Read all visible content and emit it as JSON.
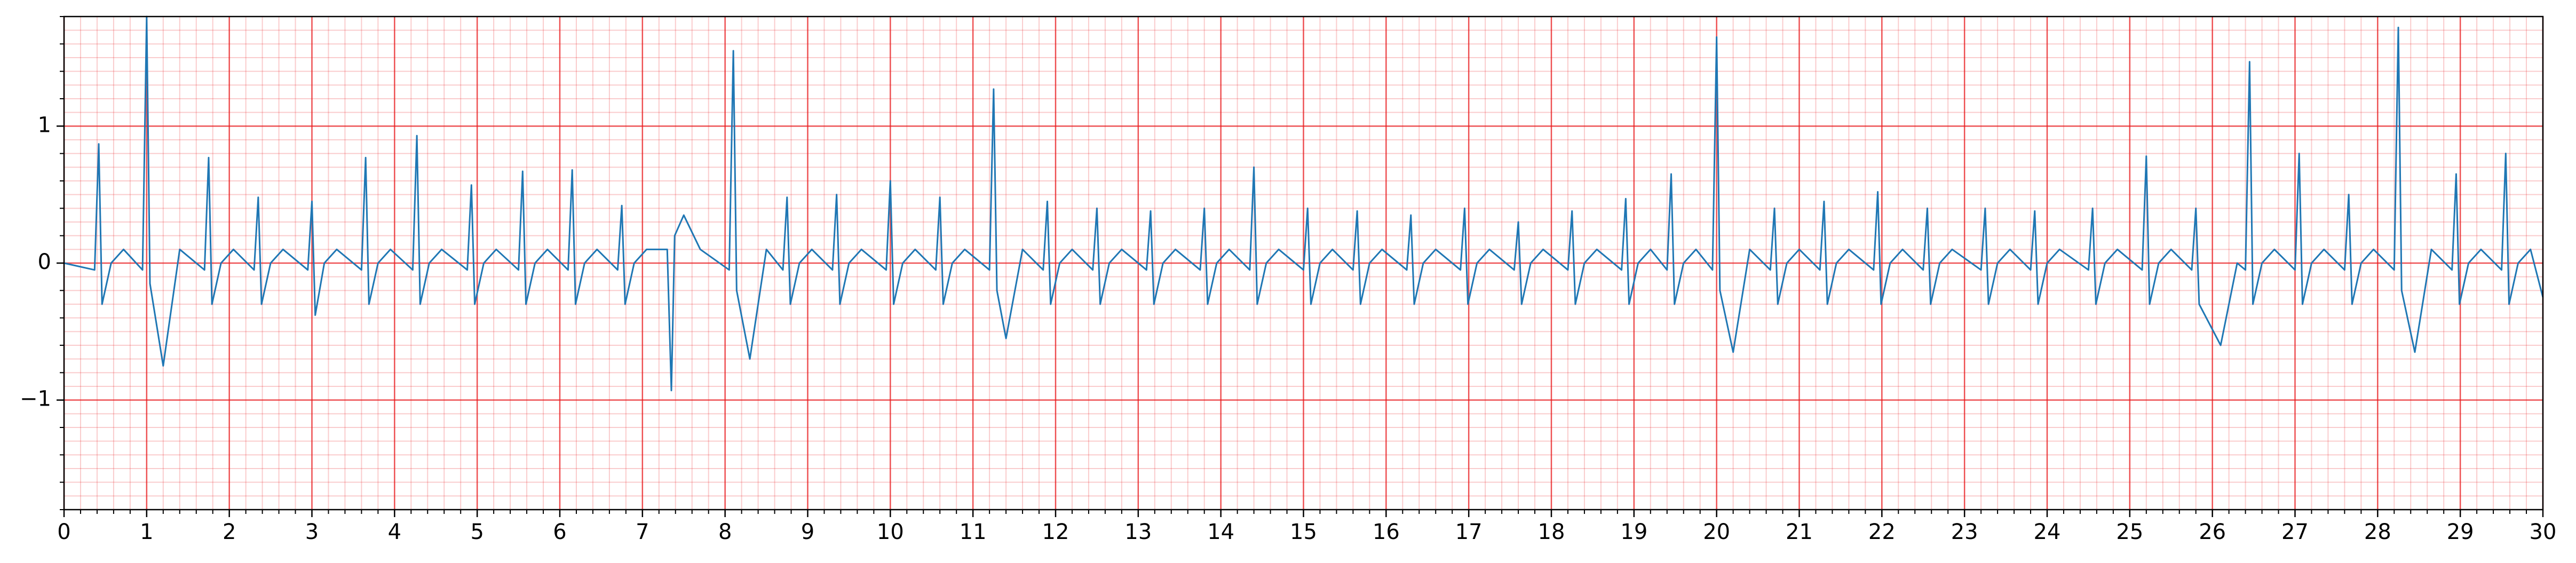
{
  "chart_data": {
    "type": "line",
    "x": [
      0,
      0.37,
      0.42,
      0.46,
      0.57,
      0.72,
      0.95,
      1.0,
      1.04,
      1.2,
      1.4,
      1.7,
      1.75,
      1.79,
      1.9,
      2.05,
      2.3,
      2.35,
      2.39,
      2.5,
      2.65,
      2.95,
      3.0,
      3.04,
      3.15,
      3.3,
      3.6,
      3.65,
      3.69,
      3.8,
      3.95,
      4.22,
      4.27,
      4.31,
      4.42,
      4.57,
      4.88,
      4.93,
      4.97,
      5.08,
      5.23,
      5.5,
      5.55,
      5.59,
      5.7,
      5.85,
      6.1,
      6.15,
      6.19,
      6.3,
      6.45,
      6.7,
      6.75,
      6.79,
      6.9,
      7.05,
      7.3,
      7.35,
      7.39,
      7.5,
      7.7,
      8.05,
      8.1,
      8.14,
      8.3,
      8.5,
      8.7,
      8.75,
      8.79,
      8.9,
      9.05,
      9.3,
      9.35,
      9.39,
      9.5,
      9.65,
      9.95,
      10.0,
      10.04,
      10.15,
      10.3,
      10.55,
      10.6,
      10.64,
      10.75,
      10.9,
      11.2,
      11.25,
      11.29,
      11.4,
      11.6,
      11.85,
      11.9,
      11.94,
      12.05,
      12.2,
      12.45,
      12.5,
      12.54,
      12.65,
      12.8,
      13.1,
      13.15,
      13.19,
      13.3,
      13.45,
      13.75,
      13.8,
      13.84,
      13.95,
      14.1,
      14.35,
      14.4,
      14.44,
      14.55,
      14.7,
      15.0,
      15.05,
      15.09,
      15.2,
      15.35,
      15.6,
      15.65,
      15.69,
      15.8,
      15.95,
      16.25,
      16.3,
      16.34,
      16.45,
      16.6,
      16.9,
      16.95,
      16.99,
      17.1,
      17.25,
      17.55,
      17.6,
      17.64,
      17.75,
      17.9,
      18.2,
      18.25,
      18.29,
      18.4,
      18.55,
      18.85,
      18.9,
      18.94,
      19.05,
      19.2,
      19.4,
      19.45,
      19.49,
      19.6,
      19.75,
      19.95,
      20.0,
      20.04,
      20.2,
      20.4,
      20.65,
      20.7,
      20.74,
      20.85,
      21.0,
      21.25,
      21.3,
      21.34,
      21.45,
      21.6,
      21.9,
      21.95,
      21.99,
      22.1,
      22.25,
      22.5,
      22.55,
      22.59,
      22.7,
      22.85,
      23.2,
      23.25,
      23.29,
      23.4,
      23.55,
      23.8,
      23.85,
      23.89,
      24.0,
      24.15,
      24.5,
      24.55,
      24.59,
      24.7,
      24.85,
      25.15,
      25.2,
      25.24,
      25.35,
      25.5,
      25.75,
      25.8,
      25.84,
      26.1,
      26.3,
      26.4,
      26.45,
      26.49,
      26.6,
      26.75,
      27.0,
      27.05,
      27.09,
      27.2,
      27.35,
      27.6,
      27.65,
      27.69,
      27.8,
      27.95,
      28.2,
      28.25,
      28.29,
      28.45,
      28.65,
      28.9,
      28.95,
      28.99,
      29.1,
      29.25,
      29.5,
      29.55,
      29.59,
      29.7,
      29.85,
      30
    ],
    "series": [
      {
        "color": "#1f77b4",
        "values": [
          0,
          -0.05,
          0.87,
          -0.3,
          0,
          0.1,
          -0.05,
          1.8,
          -0.15,
          -0.75,
          0.1,
          -0.05,
          0.77,
          -0.3,
          0,
          0.1,
          -0.05,
          0.48,
          -0.3,
          0,
          0.1,
          -0.05,
          0.45,
          -0.38,
          0,
          0.1,
          -0.05,
          0.77,
          -0.3,
          0,
          0.1,
          -0.05,
          0.93,
          -0.3,
          0,
          0.1,
          -0.05,
          0.57,
          -0.3,
          0,
          0.1,
          -0.05,
          0.67,
          -0.3,
          0,
          0.1,
          -0.05,
          0.68,
          -0.3,
          0,
          0.1,
          -0.05,
          0.42,
          -0.3,
          0,
          0.1,
          0.1,
          -0.93,
          0.2,
          0.35,
          0.1,
          -0.05,
          1.55,
          -0.2,
          -0.7,
          0.1,
          -0.05,
          0.48,
          -0.3,
          0,
          0.1,
          -0.05,
          0.5,
          -0.3,
          0,
          0.1,
          -0.05,
          0.6,
          -0.3,
          0,
          0.1,
          -0.05,
          0.48,
          -0.3,
          0,
          0.1,
          -0.05,
          1.27,
          -0.2,
          -0.55,
          0.1,
          -0.05,
          0.45,
          -0.3,
          0,
          0.1,
          -0.05,
          0.4,
          -0.3,
          0,
          0.1,
          -0.05,
          0.38,
          -0.3,
          0,
          0.1,
          -0.05,
          0.4,
          -0.3,
          0,
          0.1,
          -0.05,
          0.7,
          -0.3,
          0,
          0.1,
          -0.05,
          0.4,
          -0.3,
          0,
          0.1,
          -0.05,
          0.38,
          -0.3,
          0,
          0.1,
          -0.05,
          0.35,
          -0.3,
          0,
          0.1,
          -0.05,
          0.4,
          -0.3,
          0,
          0.1,
          -0.05,
          0.3,
          -0.3,
          0,
          0.1,
          -0.05,
          0.38,
          -0.3,
          0,
          0.1,
          -0.05,
          0.47,
          -0.3,
          0,
          0.1,
          -0.05,
          0.65,
          -0.3,
          0,
          0.1,
          -0.05,
          1.65,
          -0.2,
          -0.65,
          0.1,
          -0.05,
          0.4,
          -0.3,
          0,
          0.1,
          -0.05,
          0.45,
          -0.3,
          0,
          0.1,
          -0.05,
          0.52,
          -0.3,
          0,
          0.1,
          -0.05,
          0.4,
          -0.3,
          0,
          0.1,
          -0.05,
          0.4,
          -0.3,
          0,
          0.1,
          -0.05,
          0.38,
          -0.3,
          0,
          0.1,
          -0.05,
          0.4,
          -0.3,
          0,
          0.1,
          -0.05,
          0.78,
          -0.3,
          0,
          0.1,
          -0.05,
          0.4,
          -0.3,
          -0.6,
          0,
          -0.05,
          1.47,
          -0.3,
          0,
          0.1,
          -0.05,
          0.8,
          -0.3,
          0,
          0.1,
          -0.05,
          0.5,
          -0.3,
          0,
          0.1,
          -0.05,
          1.72,
          -0.2,
          -0.65,
          0.1,
          -0.05,
          0.65,
          -0.3,
          0,
          0.1,
          -0.05,
          0.8,
          -0.3,
          0,
          0.1,
          -0.25
        ]
      }
    ],
    "xlim": [
      0,
      30
    ],
    "ylim": [
      -1.8,
      1.8
    ],
    "xticks": [
      0,
      1,
      2,
      3,
      4,
      5,
      6,
      7,
      8,
      9,
      10,
      11,
      12,
      13,
      14,
      15,
      16,
      17,
      18,
      19,
      20,
      21,
      22,
      23,
      24,
      25,
      26,
      27,
      28,
      29,
      30
    ],
    "yticks": [
      {
        "value": -1,
        "label": "−1"
      },
      0,
      1
    ],
    "grid": true,
    "grid_color": "#e8191c",
    "minor_grid_step": {
      "x": 0.2,
      "y": 0.1
    }
  }
}
